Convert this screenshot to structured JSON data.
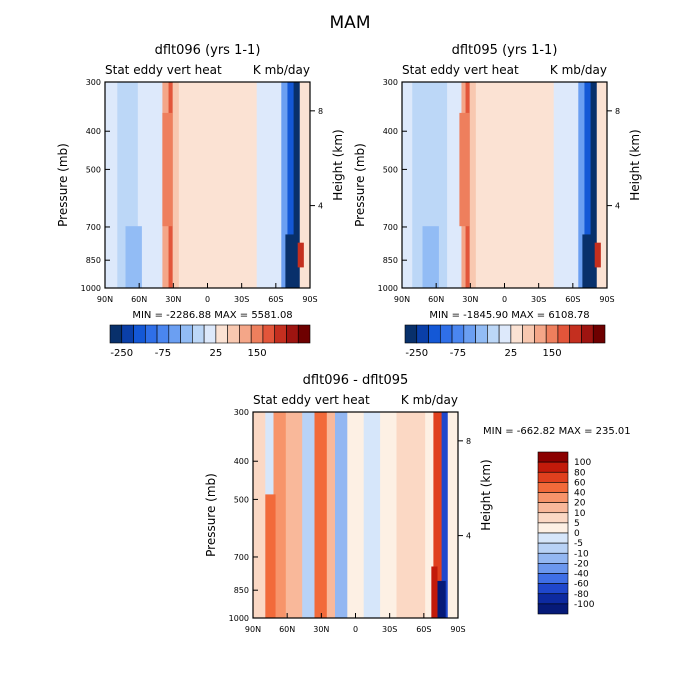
{
  "page_title": "MAM",
  "chart_data": [
    {
      "type": "heatmap",
      "title": "dflt096 (yrs 1-1)",
      "left_label": "Stat eddy vert heat",
      "right_label": "K mb/day",
      "ylabel": "Pressure (mb)",
      "y2label": "Height (km)",
      "xlabel": "",
      "x_ticks": [
        "90N",
        "60N",
        "30N",
        "0",
        "30S",
        "60S",
        "90S"
      ],
      "y_ticks": [
        "300",
        "400",
        "500",
        "700",
        "850",
        "1000"
      ],
      "y2_ticks": [
        "8",
        "4"
      ],
      "ylim": [
        1000,
        300
      ],
      "min_max": "MIN = -2286.88   MAX = 5581.08",
      "colorbar_labels": [
        "-250",
        "-75",
        "25",
        "150"
      ],
      "colorbar_colors": [
        "#08306b",
        "#0a3fa8",
        "#1458d6",
        "#2f6fe8",
        "#4a86f0",
        "#6b9ff2",
        "#92bcf5",
        "#bcd7f7",
        "#dde9fb",
        "#fbe2d3",
        "#f8c8b0",
        "#f4a688",
        "#ee7f5d",
        "#e2553a",
        "#c42f1f",
        "#9e1410",
        "#6e0000"
      ]
    },
    {
      "type": "heatmap",
      "title": "dflt095 (yrs 1-1)",
      "left_label": "Stat eddy vert heat",
      "right_label": "K mb/day",
      "ylabel": "Pressure (mb)",
      "y2label": "Height (km)",
      "xlabel": "",
      "x_ticks": [
        "90N",
        "60N",
        "30N",
        "0",
        "30S",
        "60S",
        "90S"
      ],
      "y_ticks": [
        "300",
        "400",
        "500",
        "700",
        "850",
        "1000"
      ],
      "y2_ticks": [
        "8",
        "4"
      ],
      "ylim": [
        1000,
        300
      ],
      "min_max": "MIN = -1845.90   MAX = 6108.78",
      "colorbar_labels": [
        "-250",
        "-75",
        "25",
        "150"
      ],
      "colorbar_colors": [
        "#08306b",
        "#0a3fa8",
        "#1458d6",
        "#2f6fe8",
        "#4a86f0",
        "#6b9ff2",
        "#92bcf5",
        "#bcd7f7",
        "#dde9fb",
        "#fbe2d3",
        "#f8c8b0",
        "#f4a688",
        "#ee7f5d",
        "#e2553a",
        "#c42f1f",
        "#9e1410",
        "#6e0000"
      ]
    },
    {
      "type": "heatmap",
      "title": "dflt096 - dflt095",
      "left_label": "Stat eddy vert heat",
      "right_label": "K mb/day",
      "ylabel": "Pressure (mb)",
      "y2label": "Height (km)",
      "xlabel": "",
      "x_ticks": [
        "90N",
        "60N",
        "30N",
        "0",
        "30S",
        "60S",
        "90S"
      ],
      "y_ticks": [
        "300",
        "400",
        "500",
        "700",
        "850",
        "1000"
      ],
      "y2_ticks": [
        "8",
        "4"
      ],
      "ylim": [
        1000,
        300
      ],
      "min_max": "MIN = -662.82   MAX = 235.01",
      "colorbar_labels": [
        "100",
        "80",
        "60",
        "40",
        "20",
        "10",
        "5",
        "0",
        "-5",
        "-10",
        "-20",
        "-40",
        "-60",
        "-80",
        "-100"
      ],
      "colorbar_colors": [
        "#8b0000",
        "#c21a0a",
        "#e0401e",
        "#f26a3a",
        "#f7946a",
        "#f9b89a",
        "#fbd8c4",
        "#fdf0e4",
        "#d6e6fa",
        "#b8d2f6",
        "#93b7f2",
        "#6b97ee",
        "#3f6fe6",
        "#1f47cc",
        "#0d2aa0",
        "#061a78"
      ]
    }
  ]
}
